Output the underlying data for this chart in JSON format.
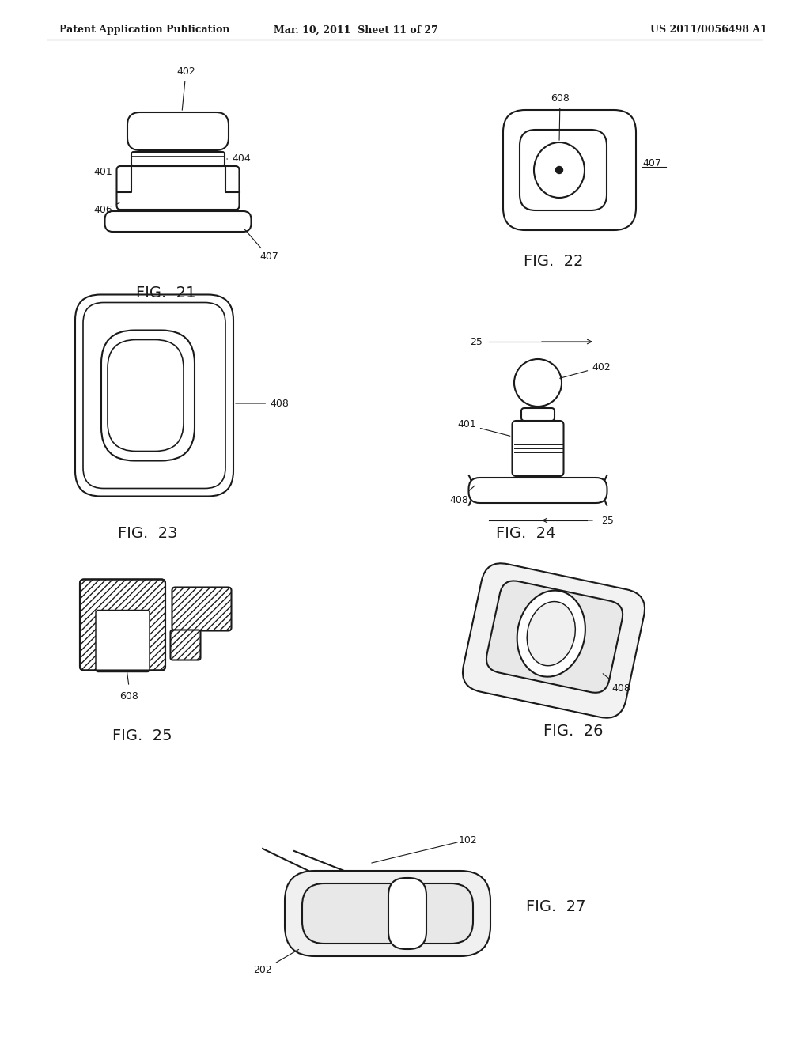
{
  "bg_color": "#ffffff",
  "line_color": "#1a1a1a",
  "header_left": "Patent Application Publication",
  "header_mid": "Mar. 10, 2011  Sheet 11 of 27",
  "header_right": "US 2011/0056498 A1",
  "lw": 1.5
}
